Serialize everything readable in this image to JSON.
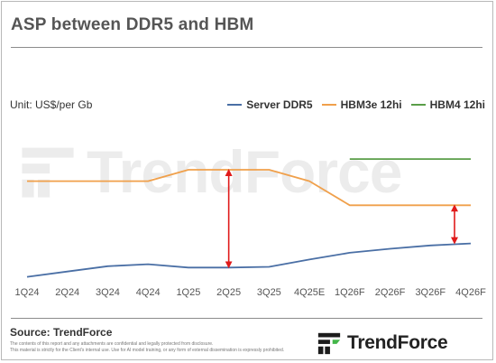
{
  "title": "ASP between DDR5 and HBM",
  "unit_label": "Unit: US$/per Gb",
  "source": "Source: TrendForce",
  "disclaimer": [
    "The contents of this report and any attachments are confidential and legally protected from disclosure.",
    "This material is strictly for the Client's internal use. Use for AI model training, or any form of external dissemination is expressly prohibited."
  ],
  "logo_text": "TrendForce",
  "watermark_text": "TrendForce",
  "colors": {
    "server_ddr5": "#4a6fa5",
    "hbm3e": "#f0a04b",
    "hbm4": "#5a9e48",
    "arrow": "#e01a1a"
  },
  "chart_data": {
    "type": "line",
    "title": "ASP between DDR5 and HBM",
    "ylabel": "Unit: US$/per Gb",
    "categories": [
      "1Q24",
      "2Q24",
      "3Q24",
      "4Q24",
      "1Q25",
      "2Q25",
      "3Q25",
      "4Q25E",
      "1Q26F",
      "2Q26F",
      "3Q26F",
      "4Q26F"
    ],
    "ylim": [
      0,
      12
    ],
    "y_axis_labels_shown": false,
    "grid": false,
    "legend_position": "top-right",
    "series": [
      {
        "name": "Server DDR5",
        "color": "#4a6fa5",
        "values": [
          0.9,
          1.3,
          1.7,
          1.85,
          1.6,
          1.6,
          1.65,
          2.2,
          2.7,
          3.0,
          3.25,
          3.4
        ]
      },
      {
        "name": "HBM3e 12hi",
        "color": "#f0a04b",
        "values": [
          8.05,
          8.05,
          8.05,
          8.05,
          8.9,
          8.9,
          8.9,
          8.05,
          6.25,
          6.25,
          6.25,
          6.25
        ]
      },
      {
        "name": "HBM4 12hi",
        "color": "#5a9e48",
        "values": [
          null,
          null,
          null,
          null,
          null,
          null,
          null,
          null,
          9.7,
          9.7,
          9.7,
          9.7
        ]
      }
    ],
    "annotations": [
      {
        "type": "double-arrow",
        "category": "2Q25",
        "from_series": "Server DDR5",
        "to_series": "HBM3e 12hi"
      },
      {
        "type": "double-arrow",
        "category": "4Q26F",
        "from_series": "Server DDR5",
        "to_series": "HBM3e 12hi"
      }
    ]
  }
}
